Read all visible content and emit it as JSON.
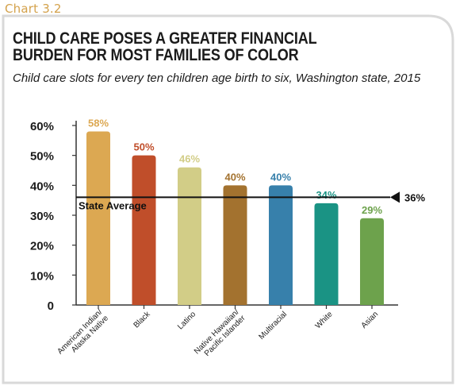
{
  "header": {
    "chart_number": "Chart 3.2",
    "title": "CHILD CARE POSES A GREATER FINANCIAL BURDEN FOR MOST FAMILIES OF COLOR",
    "subtitle": "Child care slots for every ten children age birth to six, Washington state, 2015"
  },
  "colors": {
    "frame": "#d9d9d9",
    "chart_number": "#d4a24c",
    "axis": "#333333"
  },
  "chart_data": {
    "type": "bar",
    "title": "CHILD CARE POSES A GREATER FINANCIAL BURDEN FOR MOST FAMILIES OF COLOR",
    "subtitle": "Child care slots for every ten children age birth to six, Washington state, 2015",
    "categories": [
      [
        "American Indian/",
        "Alaska Native"
      ],
      [
        "Black"
      ],
      [
        "Latino"
      ],
      [
        "Native Hawaiian/",
        "Pacific Islander"
      ],
      [
        "Multiracial"
      ],
      [
        "White"
      ],
      [
        "Asian"
      ]
    ],
    "values": [
      58,
      50,
      46,
      40,
      40,
      34,
      29
    ],
    "value_labels": [
      "58%",
      "50%",
      "46%",
      "40%",
      "40%",
      "34%",
      "29%"
    ],
    "colors": [
      "#dca852",
      "#c04e2a",
      "#d2cd87",
      "#a3722f",
      "#3780ab",
      "#1a9384",
      "#6da24c"
    ],
    "ylim": [
      0,
      60
    ],
    "yticks": [
      0,
      10,
      20,
      30,
      40,
      50,
      60
    ],
    "ytick_labels": [
      "0",
      "10%",
      "20%",
      "30%",
      "40%",
      "50%",
      "60%"
    ],
    "grid": false,
    "reference_line": {
      "value": 36,
      "label": "State Average",
      "value_label": "36%"
    }
  }
}
